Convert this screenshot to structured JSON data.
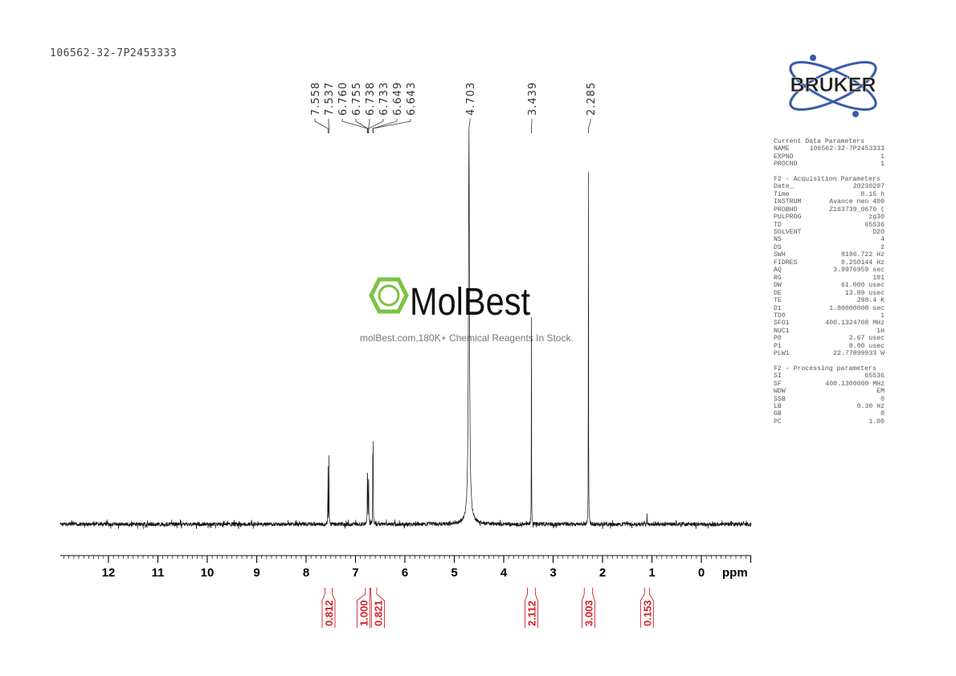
{
  "title": "106562-32-7P2453333",
  "brand": {
    "logo_text": "BRUKER",
    "logo_color": "#1d1d1b",
    "orbit_color": "#3a5ca8"
  },
  "watermark": {
    "name": "MolBest",
    "tagline": "molBest.com,180K+ Chemical Reagents In Stock.",
    "color": "#7dc242"
  },
  "parameters": {
    "sections": [
      {
        "heading": "Current Data Parameters",
        "rows": [
          [
            "NAME",
            "106562-32-7P2453333"
          ],
          [
            "EXPNO",
            "1"
          ],
          [
            "PROCNO",
            "1"
          ]
        ]
      },
      {
        "heading": "F2 - Acquisition Parameters",
        "rows": [
          [
            "Date_",
            "20230207"
          ],
          [
            "Time",
            "8.15 h"
          ],
          [
            "INSTRUM",
            "Avance neo 400"
          ],
          [
            "PROBHD",
            "Z163739_0670 ("
          ],
          [
            "PULPROG",
            "zg30"
          ],
          [
            "TD",
            "65536"
          ],
          [
            "SOLVENT",
            "D2O"
          ],
          [
            "NS",
            "4"
          ],
          [
            "DS",
            "2"
          ],
          [
            "SWH",
            "8196.722 Hz"
          ],
          [
            "FIDRES",
            "0.250144 Hz"
          ],
          [
            "AQ",
            "3.9976959 sec"
          ],
          [
            "RG",
            "101"
          ],
          [
            "DW",
            "61.000 usec"
          ],
          [
            "DE",
            "13.89 usec"
          ],
          [
            "TE",
            "298.4 K"
          ],
          [
            "D1",
            "1.00000000 sec"
          ],
          [
            "TD0",
            "1"
          ],
          [
            "SFO1",
            "400.1324708 MHz"
          ],
          [
            "NUC1",
            "1H"
          ],
          [
            "P0",
            "2.67 usec"
          ],
          [
            "P1",
            "8.00 usec"
          ],
          [
            "PLW1",
            "22.77899933 W"
          ]
        ]
      },
      {
        "heading": "F2 - Processing parameters",
        "rows": [
          [
            "SI",
            "65536"
          ],
          [
            "SF",
            "400.1300000 MHz"
          ],
          [
            "WDW",
            "EM"
          ],
          [
            "SSB",
            "0"
          ],
          [
            "LB",
            "0.30 Hz"
          ],
          [
            "GB",
            "0"
          ],
          [
            "PC",
            "1.00"
          ]
        ]
      }
    ]
  },
  "chart_data": {
    "type": "line",
    "xlabel": "ppm",
    "xlim": [
      13,
      -1
    ],
    "x_ticks": [
      "12",
      "11",
      "10",
      "9",
      "8",
      "7",
      "6",
      "5",
      "4",
      "3",
      "2",
      "1",
      "0"
    ],
    "peak_labels": [
      "7.558",
      "7.537",
      "6.760",
      "6.755",
      "6.738",
      "6.733",
      "6.649",
      "6.643",
      "4.703",
      "3.439",
      "2.285"
    ],
    "peaks": [
      {
        "ppm": 7.558,
        "intensity": 0.18
      },
      {
        "ppm": 7.537,
        "intensity": 0.18
      },
      {
        "ppm": 6.76,
        "intensity": 0.11
      },
      {
        "ppm": 6.755,
        "intensity": 0.11
      },
      {
        "ppm": 6.738,
        "intensity": 0.11
      },
      {
        "ppm": 6.733,
        "intensity": 0.11
      },
      {
        "ppm": 6.649,
        "intensity": 0.21
      },
      {
        "ppm": 6.643,
        "intensity": 0.21
      },
      {
        "ppm": 4.703,
        "intensity": 1.0
      },
      {
        "ppm": 3.439,
        "intensity": 0.54
      },
      {
        "ppm": 2.285,
        "intensity": 0.95
      },
      {
        "ppm": 1.1,
        "intensity": 0.04
      }
    ],
    "integrals": [
      {
        "from": 7.62,
        "to": 7.47,
        "value": "0.812"
      },
      {
        "from": 6.8,
        "to": 6.71,
        "value": "1.000"
      },
      {
        "from": 6.69,
        "to": 6.57,
        "value": "0.821"
      },
      {
        "from": 3.52,
        "to": 3.36,
        "value": "2.112"
      },
      {
        "from": 2.37,
        "to": 2.2,
        "value": "3.003"
      },
      {
        "from": 1.15,
        "to": 1.05,
        "value": "0.153"
      }
    ],
    "integral_color": "#d42027"
  }
}
